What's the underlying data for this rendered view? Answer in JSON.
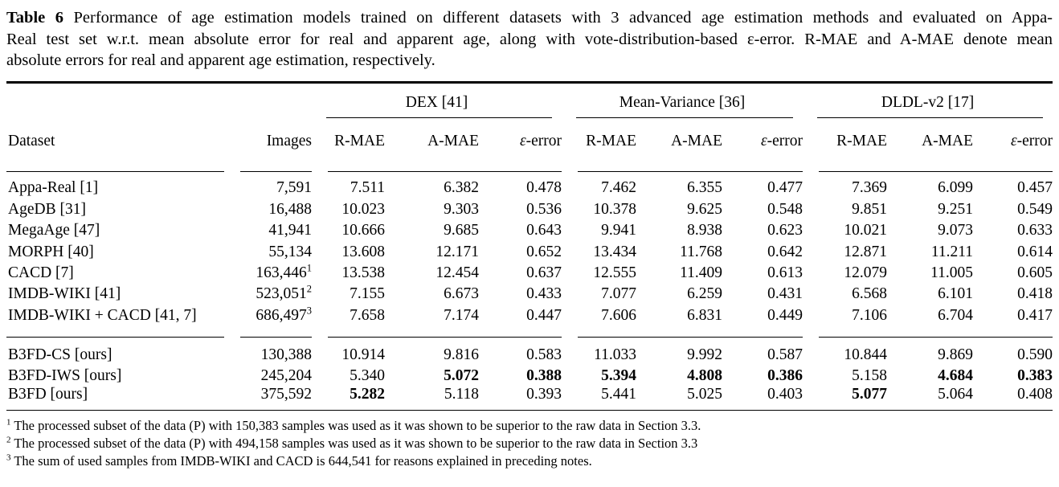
{
  "caption": {
    "label": "Table 6",
    "line1": "Performance of age estimation models trained on different datasets with 3 advanced age estimation methods and evaluated on Appa-",
    "line2": "Real test set w.r.t. mean absolute error for real and apparent age, along with vote-distribution-based ε-error. R-MAE and A-MAE denote mean",
    "line3": "absolute errors for real and apparent age estimation, respectively.",
    "full_text": "Table 6 Performance of age estimation models trained on different datasets with 3 advanced age estimation methods and evaluated on Appa-Real test set w.r.t. mean absolute error for real and apparent age, along with vote-distribution-based ε-error. R-MAE and A-MAE denote mean absolute errors for real and apparent age estimation, respectively."
  },
  "table": {
    "group_headers": [
      {
        "label": "DEX [41]"
      },
      {
        "label": "Mean-Variance [36]"
      },
      {
        "label": "DLDL-v2 [17]"
      }
    ],
    "columns": {
      "dataset": "Dataset",
      "images": "Images",
      "metrics": [
        "R-MAE",
        "A-MAE",
        "ε-error"
      ],
      "epsilon_symbol": "ε",
      "epsilon_rest": "-error"
    },
    "sections": [
      {
        "name": "pretrained-datasets",
        "rows": [
          {
            "dataset": "Appa-Real [1]",
            "images": "7,591",
            "images_sup": "",
            "values": [
              "7.511",
              "6.382",
              "0.478",
              "7.462",
              "6.355",
              "0.477",
              "7.369",
              "6.099",
              "0.457"
            ],
            "bold": []
          },
          {
            "dataset": "AgeDB [31]",
            "images": "16,488",
            "images_sup": "",
            "values": [
              "10.023",
              "9.303",
              "0.536",
              "10.378",
              "9.625",
              "0.548",
              "9.851",
              "9.251",
              "0.549"
            ],
            "bold": []
          },
          {
            "dataset": "MegaAge [47]",
            "images": "41,941",
            "images_sup": "",
            "values": [
              "10.666",
              "9.685",
              "0.643",
              "9.941",
              "8.938",
              "0.623",
              "10.021",
              "9.073",
              "0.633"
            ],
            "bold": []
          },
          {
            "dataset": "MORPH [40]",
            "images": "55,134",
            "images_sup": "",
            "values": [
              "13.608",
              "12.171",
              "0.652",
              "13.434",
              "11.768",
              "0.642",
              "12.871",
              "11.211",
              "0.614"
            ],
            "bold": []
          },
          {
            "dataset": "CACD [7]",
            "images": "163,446",
            "images_sup": "1",
            "values": [
              "13.538",
              "12.454",
              "0.637",
              "12.555",
              "11.409",
              "0.613",
              "12.079",
              "11.005",
              "0.605"
            ],
            "bold": []
          },
          {
            "dataset": "IMDB-WIKI [41]",
            "images": "523,051",
            "images_sup": "2",
            "values": [
              "7.155",
              "6.673",
              "0.433",
              "7.077",
              "6.259",
              "0.431",
              "6.568",
              "6.101",
              "0.418"
            ],
            "bold": []
          },
          {
            "dataset": "IMDB-WIKI + CACD [41, 7]",
            "images": "686,497",
            "images_sup": "3",
            "values": [
              "7.658",
              "7.174",
              "0.447",
              "7.606",
              "6.831",
              "0.449",
              "7.106",
              "6.704",
              "0.417"
            ],
            "bold": []
          }
        ]
      },
      {
        "name": "ours-datasets",
        "rows": [
          {
            "dataset": "B3FD-CS [ours]",
            "images": "130,388",
            "images_sup": "",
            "values": [
              "10.914",
              "9.816",
              "0.583",
              "11.033",
              "9.992",
              "0.587",
              "10.844",
              "9.869",
              "0.590"
            ],
            "bold": []
          },
          {
            "dataset": "B3FD-IWS [ours]",
            "images": "245,204",
            "images_sup": "",
            "values": [
              "5.340",
              "5.072",
              "0.388",
              "5.394",
              "4.808",
              "0.386",
              "5.158",
              "4.684",
              "0.383"
            ],
            "bold": [
              1,
              2,
              3,
              4,
              5,
              7,
              8
            ]
          },
          {
            "dataset": "B3FD [ours]",
            "images": "375,592",
            "images_sup": "",
            "values": [
              "5.282",
              "5.118",
              "0.393",
              "5.441",
              "5.025",
              "0.403",
              "5.077",
              "5.064",
              "0.408"
            ],
            "bold": [
              0,
              6
            ]
          }
        ]
      }
    ]
  },
  "footnotes": [
    {
      "sup": "1",
      "text": "The processed subset of the data (P) with 150,383 samples was used as it was shown to be superior to the raw data in Section 3.3."
    },
    {
      "sup": "2",
      "text": "The processed subset of the data (P) with 494,158 samples was used as it was shown to be superior to the raw data in Section 3.3"
    },
    {
      "sup": "3",
      "text": "The sum of used samples from IMDB-WIKI and CACD is 644,541 for reasons explained in preceding notes."
    }
  ]
}
